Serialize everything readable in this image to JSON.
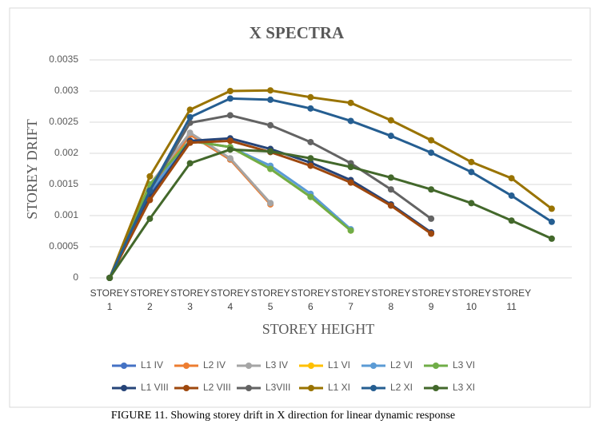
{
  "chart_data": {
    "type": "line",
    "title": "X SPECTRA",
    "xlabel": "STOREY HEIGHT",
    "ylabel": "STOREY DRIFT",
    "caption": "FIGURE 11. Showing storey drift in X direction for linear dynamic response",
    "categories": [
      "STOREY 1",
      "STOREY 2",
      "STOREY 3",
      "STOREY 4",
      "STOREY 5",
      "STOREY 6",
      "STOREY 7",
      "STOREY 8",
      "STOREY 9",
      "STOREY 10",
      "STOREY 11",
      null
    ],
    "ylim": [
      0,
      0.0035
    ],
    "yticks": [
      0,
      0.0005,
      0.001,
      0.0015,
      0.002,
      0.0025,
      0.003,
      0.0035
    ],
    "grid": true,
    "legend": "bottom",
    "series": [
      {
        "name": "L1 IV",
        "color": "#4472c4",
        "values": [
          0,
          0.00135,
          0.0023,
          0.0019,
          0.0012,
          null,
          null,
          null,
          null,
          null,
          null,
          null
        ]
      },
      {
        "name": "L2 IV",
        "color": "#ed7d31",
        "values": [
          0,
          0.0014,
          0.0023,
          0.0019,
          0.00118,
          null,
          null,
          null,
          null,
          null,
          null,
          null
        ]
      },
      {
        "name": "L3 IV",
        "color": "#a5a5a5",
        "values": [
          0,
          0.0015,
          0.00233,
          0.00192,
          0.0012,
          null,
          null,
          null,
          null,
          null,
          null,
          null
        ]
      },
      {
        "name": "L1 VI",
        "color": "#ffc000",
        "values": [
          0,
          0.0015,
          0.0022,
          0.0021,
          0.00175,
          0.0013,
          0.00076,
          null,
          null,
          null,
          null,
          null
        ]
      },
      {
        "name": "L2 VI",
        "color": "#5b9bd5",
        "values": [
          0,
          0.0014,
          0.0022,
          0.0021,
          0.0018,
          0.00135,
          0.00078,
          null,
          null,
          null,
          null,
          null
        ]
      },
      {
        "name": "L3 VI",
        "color": "#70ad47",
        "values": [
          0,
          0.0015,
          0.0022,
          0.0021,
          0.00175,
          0.0013,
          0.00076,
          null,
          null,
          null,
          null,
          null
        ]
      },
      {
        "name": "L1 VIII",
        "color": "#264478",
        "values": [
          0,
          0.0013,
          0.0022,
          0.00224,
          0.00207,
          0.00185,
          0.00157,
          0.00118,
          0.00073,
          null,
          null,
          null
        ]
      },
      {
        "name": "L2 VIII",
        "color": "#9e480e",
        "values": [
          0,
          0.00125,
          0.00217,
          0.0022,
          0.00202,
          0.0018,
          0.00153,
          0.00116,
          0.00071,
          null,
          null,
          null
        ]
      },
      {
        "name": "L3VIII",
        "color": "#636363",
        "values": [
          0,
          0.0014,
          0.00249,
          0.00261,
          0.00245,
          0.00218,
          0.00184,
          0.00142,
          0.00095,
          null,
          null,
          null
        ]
      },
      {
        "name": "L1 XI",
        "color": "#997300",
        "values": [
          0,
          0.00163,
          0.0027,
          0.003,
          0.00301,
          0.0029,
          0.00281,
          0.00253,
          0.00221,
          0.00186,
          0.0016,
          0.00111
        ]
      },
      {
        "name": "L2 XI",
        "color": "#255e91",
        "values": [
          0,
          0.0014,
          0.00258,
          0.00288,
          0.00286,
          0.00272,
          0.00252,
          0.00228,
          0.00201,
          0.0017,
          0.00132,
          0.0009
        ]
      },
      {
        "name": "L3 XI",
        "color": "#43682b",
        "values": [
          0,
          0.00095,
          0.00184,
          0.00206,
          0.00203,
          0.00192,
          0.00178,
          0.00161,
          0.00142,
          0.0012,
          0.00092,
          0.00063
        ]
      }
    ]
  }
}
